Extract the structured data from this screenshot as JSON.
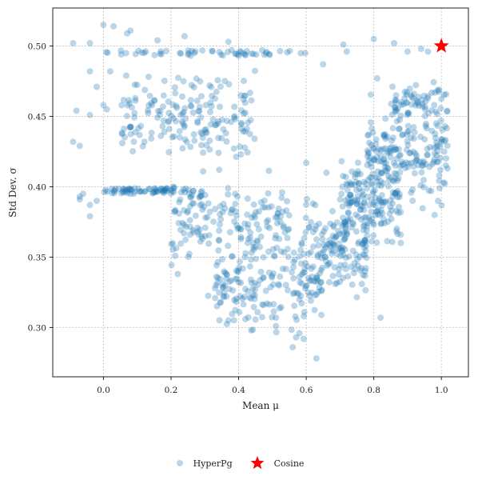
{
  "chart_data": {
    "type": "scatter",
    "xlabel": "Mean μ",
    "ylabel": "Std Dev. σ",
    "xlim": [
      -0.15,
      1.08
    ],
    "ylim": [
      0.265,
      0.527
    ],
    "xticks": [
      "0.0",
      "0.2",
      "0.4",
      "0.6",
      "0.8",
      "1.0"
    ],
    "yticks": [
      "0.30",
      "0.35",
      "0.40",
      "0.45",
      "0.50"
    ],
    "grid": true,
    "legend_position": "bottom-center",
    "series": [
      {
        "name": "HyperPg",
        "marker": "circle",
        "color": "#1f77b4",
        "opacity": 0.3,
        "clusters": [
          {
            "x_range": [
              0.0,
              0.6
            ],
            "y": 0.495,
            "count": 55,
            "y_spread": 0.002
          },
          {
            "x_range": [
              0.0,
              0.26
            ],
            "y": 0.397,
            "count": 70,
            "y_spread": 0.002
          },
          {
            "x_range": [
              0.25,
              0.3
            ],
            "y": 0.395,
            "count": 8,
            "y_spread": 0.003
          },
          {
            "x_range": [
              0.05,
              0.45
            ],
            "y_range": [
              0.41,
              0.49
            ],
            "count": 180
          },
          {
            "x_range": [
              0.2,
              0.55
            ],
            "y_range": [
              0.33,
              0.42
            ],
            "count": 160
          },
          {
            "x_range": [
              0.33,
              0.65
            ],
            "y_range": [
              0.285,
              0.37
            ],
            "count": 170
          },
          {
            "x_range": [
              0.58,
              0.78
            ],
            "y_range": [
              0.31,
              0.4
            ],
            "count": 150
          },
          {
            "x_range": [
              0.7,
              0.88
            ],
            "y_range": [
              0.35,
              0.43
            ],
            "count": 160
          },
          {
            "x_range": [
              0.78,
              1.02
            ],
            "y_range": [
              0.38,
              0.47
            ],
            "count": 190
          },
          {
            "x_range": [
              0.85,
              1.02
            ],
            "y_range": [
              0.44,
              0.48
            ],
            "count": 60
          }
        ],
        "points": [
          [
            -0.09,
            0.502
          ],
          [
            -0.04,
            0.502
          ],
          [
            0.0,
            0.515
          ],
          [
            0.03,
            0.514
          ],
          [
            0.07,
            0.509
          ],
          [
            0.08,
            0.511
          ],
          [
            0.16,
            0.504
          ],
          [
            0.24,
            0.507
          ],
          [
            0.37,
            0.503
          ],
          [
            0.47,
            0.497
          ],
          [
            0.71,
            0.501
          ],
          [
            0.72,
            0.496
          ],
          [
            0.8,
            0.505
          ],
          [
            0.86,
            0.502
          ],
          [
            0.9,
            0.496
          ],
          [
            0.94,
            0.498
          ],
          [
            0.96,
            0.496
          ],
          [
            0.65,
            0.487
          ],
          [
            0.81,
            0.477
          ],
          [
            -0.04,
            0.482
          ],
          [
            -0.02,
            0.471
          ],
          [
            0.02,
            0.482
          ],
          [
            -0.08,
            0.454
          ],
          [
            -0.04,
            0.451
          ],
          [
            0.0,
            0.458
          ],
          [
            0.01,
            0.455
          ],
          [
            -0.09,
            0.432
          ],
          [
            -0.07,
            0.429
          ],
          [
            -0.06,
            0.395
          ],
          [
            -0.07,
            0.393
          ],
          [
            -0.04,
            0.387
          ],
          [
            -0.04,
            0.379
          ],
          [
            -0.07,
            0.391
          ],
          [
            -0.02,
            0.39
          ],
          [
            0.09,
            0.432
          ],
          [
            0.82,
            0.307
          ],
          [
            0.56,
            0.286
          ],
          [
            0.63,
            0.278
          ],
          [
            0.37,
            0.305
          ],
          [
            0.58,
            0.296
          ],
          [
            0.57,
            0.293
          ],
          [
            0.42,
            0.306
          ],
          [
            0.58,
            0.32
          ],
          [
            0.6,
            0.417
          ],
          [
            0.66,
            0.41
          ],
          [
            0.98,
            0.38
          ],
          [
            0.99,
            0.39
          ],
          [
            0.88,
            0.36
          ],
          [
            0.31,
            0.3225
          ],
          [
            0.75,
            0.3215
          ]
        ]
      },
      {
        "name": "Cosine",
        "marker": "star",
        "color": "#ff0000",
        "points": [
          [
            1.0,
            0.5
          ]
        ]
      }
    ]
  },
  "legend": {
    "items": [
      {
        "label": "HyperPg",
        "icon": "circle-marker-icon",
        "color": "#1f77b4"
      },
      {
        "label": "Cosine",
        "icon": "star-marker-icon",
        "color": "#ff0000"
      }
    ]
  }
}
